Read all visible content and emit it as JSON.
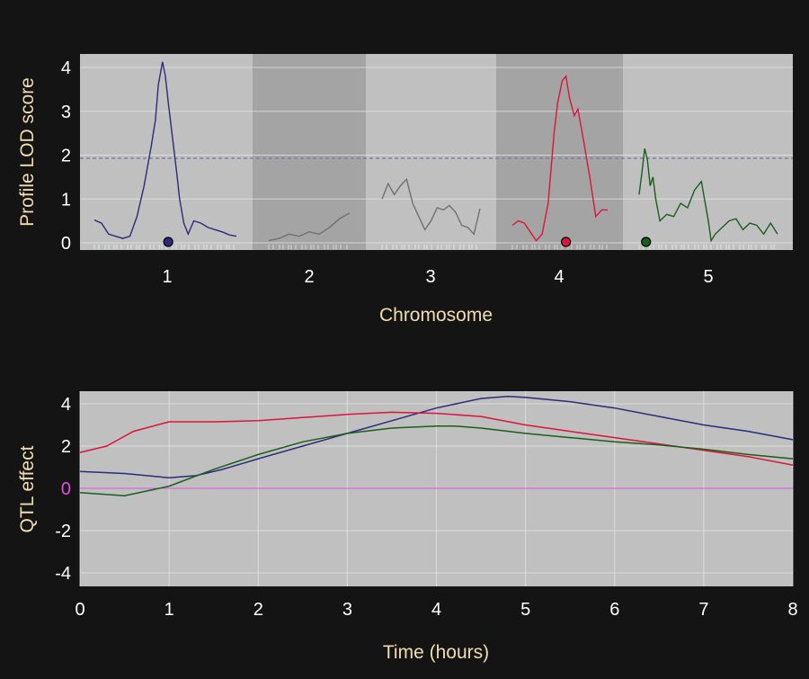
{
  "colors": {
    "background": "#141414",
    "panel": "#c0c0c0",
    "panel_alt": "#a4a4a4",
    "grid": "#e6e6e6",
    "axis_text": "#ffffff",
    "axis_title": "#f2ddb0",
    "threshold": "#7a7aa8",
    "zero_line": "#e050e0",
    "series_chr1": "#2b2b7a",
    "series_chr2": "#707070",
    "series_chr3": "#707070",
    "series_chr4": "#dc143c",
    "series_chr5": "#1a5e1a"
  },
  "chart_data": [
    {
      "type": "line",
      "xlabel": "Chromosome",
      "ylabel": "Profile LOD score",
      "ylim": [
        0,
        4.3
      ],
      "yticks": [
        "0",
        "1",
        "2",
        "3",
        "4"
      ],
      "threshold": 1.93,
      "chromosomes": [
        {
          "label": "1",
          "length": 1.0,
          "color": "#2b2b7a",
          "peak_marker": 0.52,
          "positions": [
            0,
            0.05,
            0.1,
            0.15,
            0.2,
            0.25,
            0.3,
            0.35,
            0.4,
            0.43,
            0.45,
            0.48,
            0.5,
            0.52,
            0.55,
            0.58,
            0.6,
            0.63,
            0.66,
            0.7,
            0.75,
            0.8,
            0.85,
            0.9,
            0.95,
            1.0
          ],
          "lod": [
            0.52,
            0.45,
            0.2,
            0.15,
            0.1,
            0.15,
            0.6,
            1.3,
            2.2,
            2.8,
            3.6,
            4.13,
            3.8,
            3.2,
            2.4,
            1.6,
            1.0,
            0.45,
            0.2,
            0.5,
            0.45,
            0.35,
            0.3,
            0.25,
            0.18,
            0.15
          ]
        },
        {
          "label": "2",
          "length": 0.8,
          "color": "#707070",
          "peak_marker": null,
          "positions": [
            0,
            0.1,
            0.2,
            0.3,
            0.4,
            0.5,
            0.6,
            0.7,
            0.8
          ],
          "lod": [
            0.05,
            0.1,
            0.2,
            0.15,
            0.25,
            0.2,
            0.35,
            0.55,
            0.68
          ]
        },
        {
          "label": "3",
          "length": 0.8,
          "color": "#707070",
          "peak_marker": null,
          "positions": [
            0,
            0.05,
            0.1,
            0.15,
            0.2,
            0.25,
            0.3,
            0.35,
            0.4,
            0.45,
            0.5,
            0.55,
            0.6,
            0.65,
            0.7,
            0.75,
            0.8
          ],
          "lod": [
            1.0,
            1.35,
            1.1,
            1.3,
            1.45,
            0.9,
            0.6,
            0.3,
            0.5,
            0.8,
            0.75,
            0.85,
            0.7,
            0.4,
            0.35,
            0.2,
            0.78
          ]
        },
        {
          "label": "4",
          "length": 0.8,
          "color": "#dc143c",
          "peak_marker": 0.45,
          "positions": [
            0,
            0.05,
            0.1,
            0.15,
            0.2,
            0.25,
            0.3,
            0.35,
            0.38,
            0.42,
            0.45,
            0.48,
            0.52,
            0.55,
            0.6,
            0.65,
            0.7,
            0.75,
            0.8
          ],
          "lod": [
            0.4,
            0.5,
            0.45,
            0.25,
            0.05,
            0.2,
            0.9,
            2.5,
            3.2,
            3.7,
            3.8,
            3.3,
            2.9,
            3.05,
            2.3,
            1.5,
            0.6,
            0.75,
            0.75
          ]
        },
        {
          "label": "5",
          "length": 1.0,
          "color": "#1a5e1a",
          "peak_marker": 0.05,
          "positions": [
            0,
            0.02,
            0.04,
            0.06,
            0.08,
            0.1,
            0.12,
            0.15,
            0.2,
            0.25,
            0.3,
            0.35,
            0.4,
            0.45,
            0.5,
            0.52,
            0.55,
            0.6,
            0.65,
            0.7,
            0.75,
            0.8,
            0.85,
            0.9,
            0.95,
            1.0
          ],
          "lod": [
            1.1,
            1.6,
            2.15,
            1.9,
            1.3,
            1.5,
            1.0,
            0.5,
            0.65,
            0.6,
            0.9,
            0.8,
            1.2,
            1.4,
            0.5,
            0.05,
            0.2,
            0.35,
            0.5,
            0.55,
            0.3,
            0.45,
            0.4,
            0.2,
            0.45,
            0.2
          ]
        }
      ]
    },
    {
      "type": "line",
      "xlabel": "Time (hours)",
      "ylabel": "QTL effect",
      "xlim": [
        0,
        8
      ],
      "ylim": [
        -4.7,
        4.7
      ],
      "xticks": [
        "0",
        "1",
        "2",
        "3",
        "4",
        "5",
        "6",
        "7",
        "8"
      ],
      "yticks": [
        "-4",
        "-2",
        "0",
        "2",
        "4"
      ],
      "zero_label": "0",
      "series": [
        {
          "color": "#2b2b7a",
          "x": [
            0,
            0.5,
            1,
            1.3,
            1.6,
            2,
            2.5,
            3,
            3.5,
            4,
            4.5,
            4.8,
            5,
            5.5,
            6,
            6.5,
            7,
            7.5,
            8
          ],
          "y": [
            0.8,
            0.7,
            0.5,
            0.6,
            0.9,
            1.4,
            2.0,
            2.6,
            3.2,
            3.8,
            4.25,
            4.35,
            4.3,
            4.1,
            3.8,
            3.4,
            3.0,
            2.7,
            2.3
          ]
        },
        {
          "color": "#dc143c",
          "x": [
            0,
            0.3,
            0.6,
            1,
            1.5,
            2,
            2.5,
            3,
            3.5,
            4,
            4.5,
            5,
            5.5,
            6,
            6.5,
            7,
            7.5,
            8
          ],
          "y": [
            1.7,
            2.0,
            2.7,
            3.15,
            3.15,
            3.2,
            3.35,
            3.5,
            3.6,
            3.55,
            3.4,
            3.0,
            2.7,
            2.4,
            2.1,
            1.8,
            1.5,
            1.1
          ]
        },
        {
          "color": "#1a5e1a",
          "x": [
            0,
            0.5,
            1,
            1.5,
            2,
            2.5,
            3,
            3.5,
            4,
            4.2,
            4.5,
            5,
            5.5,
            6,
            6.5,
            7,
            7.5,
            8
          ],
          "y": [
            -0.2,
            -0.35,
            0.1,
            0.9,
            1.6,
            2.2,
            2.6,
            2.85,
            2.95,
            2.95,
            2.85,
            2.6,
            2.4,
            2.2,
            2.05,
            1.85,
            1.6,
            1.4
          ]
        }
      ]
    }
  ]
}
